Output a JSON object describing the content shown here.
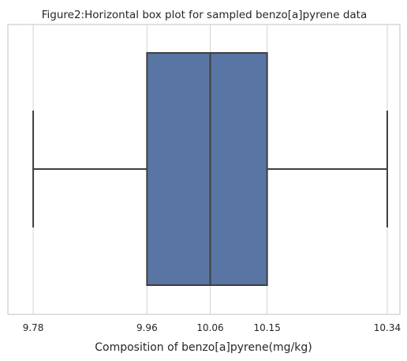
{
  "chart_data": {
    "type": "box",
    "orientation": "horizontal",
    "title": "Figure2:Horizontal box plot for sampled benzo[a]pyrene  data",
    "xlabel": "Composition of benzo[a]pyrene(mg/kg)",
    "ylabel": "",
    "xlim": [
      9.74,
      10.36
    ],
    "ticks": [
      9.78,
      9.96,
      10.06,
      10.15,
      10.34
    ],
    "tick_labels": [
      "9.78",
      "9.96",
      "10.06",
      "10.15",
      "10.34"
    ],
    "grid": true,
    "box": {
      "min": 9.78,
      "q1": 9.96,
      "median": 10.06,
      "q3": 10.15,
      "max": 10.34
    },
    "colors": {
      "box_fill": "#5875a4",
      "line": "#3f3f3f",
      "grid": "#d3d3d3",
      "frame": "#cccccc"
    }
  }
}
